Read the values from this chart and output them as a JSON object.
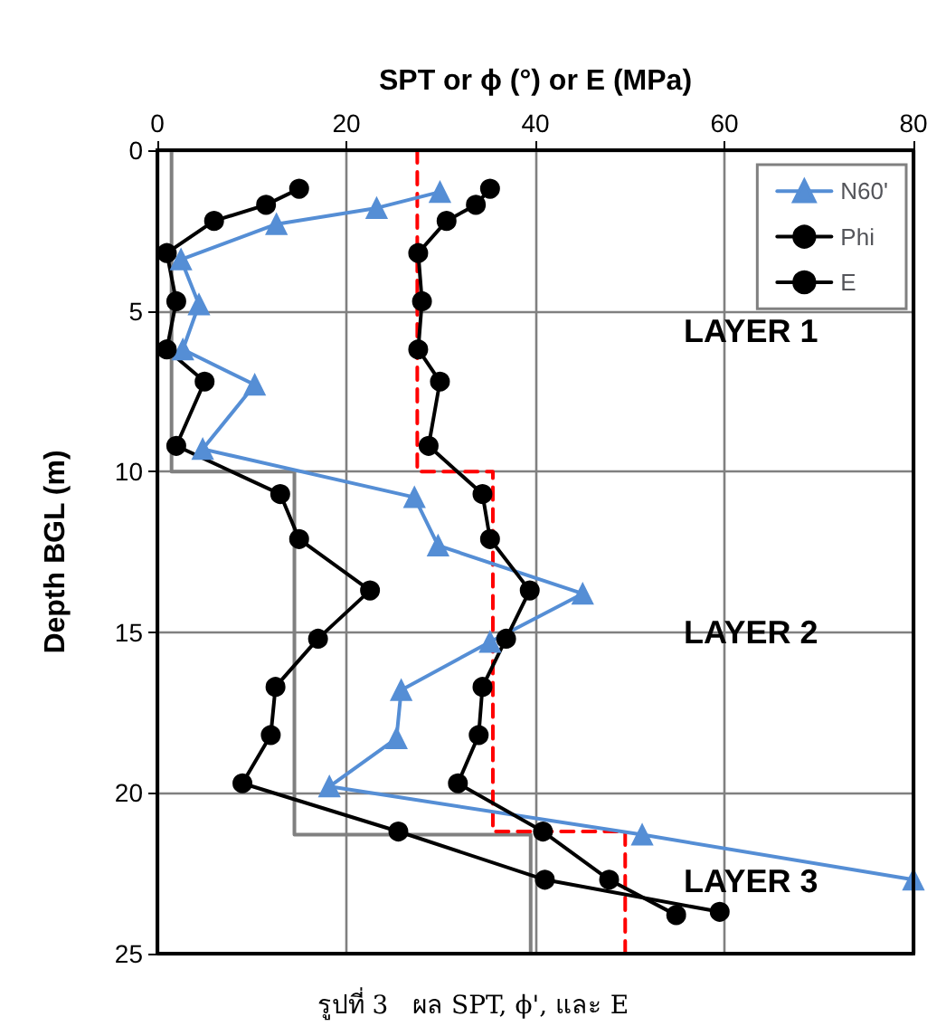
{
  "chart_data": {
    "type": "line",
    "xlabel": "SPT or ϕ (°) or E (MPa)",
    "ylabel": "Depth BGL (m)",
    "xlim": [
      0,
      80
    ],
    "xticks": [
      0,
      20,
      40,
      60,
      80
    ],
    "ylim": [
      25,
      0
    ],
    "yticks": [
      0,
      5,
      10,
      15,
      20,
      25
    ],
    "grid": true,
    "legend": "top right",
    "series": [
      {
        "name": "N60'",
        "color": "#558ed5",
        "marker": "triangle",
        "x": [
          29.9,
          23.2,
          12.6,
          2.5,
          4.4,
          2.7,
          10.3,
          4.8,
          27.2,
          29.7,
          45,
          35.2,
          25.8,
          25.3,
          18.2,
          51.3,
          80
        ],
        "values": [
          1.3,
          1.8,
          2.3,
          3.4,
          4.8,
          6.2,
          7.3,
          9.3,
          10.8,
          12.3,
          13.8,
          15.3,
          16.8,
          18.3,
          19.8,
          21.3,
          22.7
        ]
      },
      {
        "name": "Phi",
        "color": "#000000",
        "marker": "circle",
        "x": [
          35.2,
          33.7,
          30.6,
          27.6,
          28,
          27.6,
          29.9,
          28.7,
          34.4,
          35.2,
          39.4,
          36.9,
          34.4,
          34,
          31.8,
          40.8,
          47.8,
          54.9
        ],
        "values": [
          1.2,
          1.7,
          2.2,
          3.2,
          4.7,
          6.2,
          7.2,
          9.2,
          10.7,
          12.1,
          13.7,
          15.2,
          16.7,
          18.2,
          19.7,
          21.2,
          22.7,
          23.8
        ]
      },
      {
        "name": "E",
        "color": "#000000",
        "marker": "circle",
        "x": [
          15,
          11.5,
          6,
          1,
          2,
          1,
          5,
          2,
          13,
          15,
          22.5,
          17,
          12.5,
          12,
          9,
          25.5,
          41,
          59.5
        ],
        "values": [
          1.2,
          1.7,
          2.2,
          3.2,
          4.7,
          6.2,
          7.2,
          9.2,
          10.7,
          12.1,
          13.7,
          15.2,
          16.7,
          18.2,
          19.7,
          21.2,
          22.7,
          23.7
        ]
      },
      {
        "color": "#808080",
        "marker": "none",
        "x": [
          1.5,
          1.5,
          14.5,
          14.5,
          39.5,
          39.5
        ],
        "values": [
          0,
          10,
          10,
          21.3,
          21.3,
          25
        ]
      },
      {
        "color": "#ff0000",
        "marker": "none",
        "line_style": "dashed",
        "x": [
          27.5,
          27.5,
          35.5,
          35.5,
          49.5,
          49.5
        ],
        "values": [
          0,
          10,
          10,
          21.2,
          21.2,
          25
        ]
      }
    ],
    "annotations": [
      "LAYER 1",
      "LAYER 2",
      "LAYER 3",
      "รูปที่ 3   ผล SPT, ϕ', และ E"
    ]
  }
}
